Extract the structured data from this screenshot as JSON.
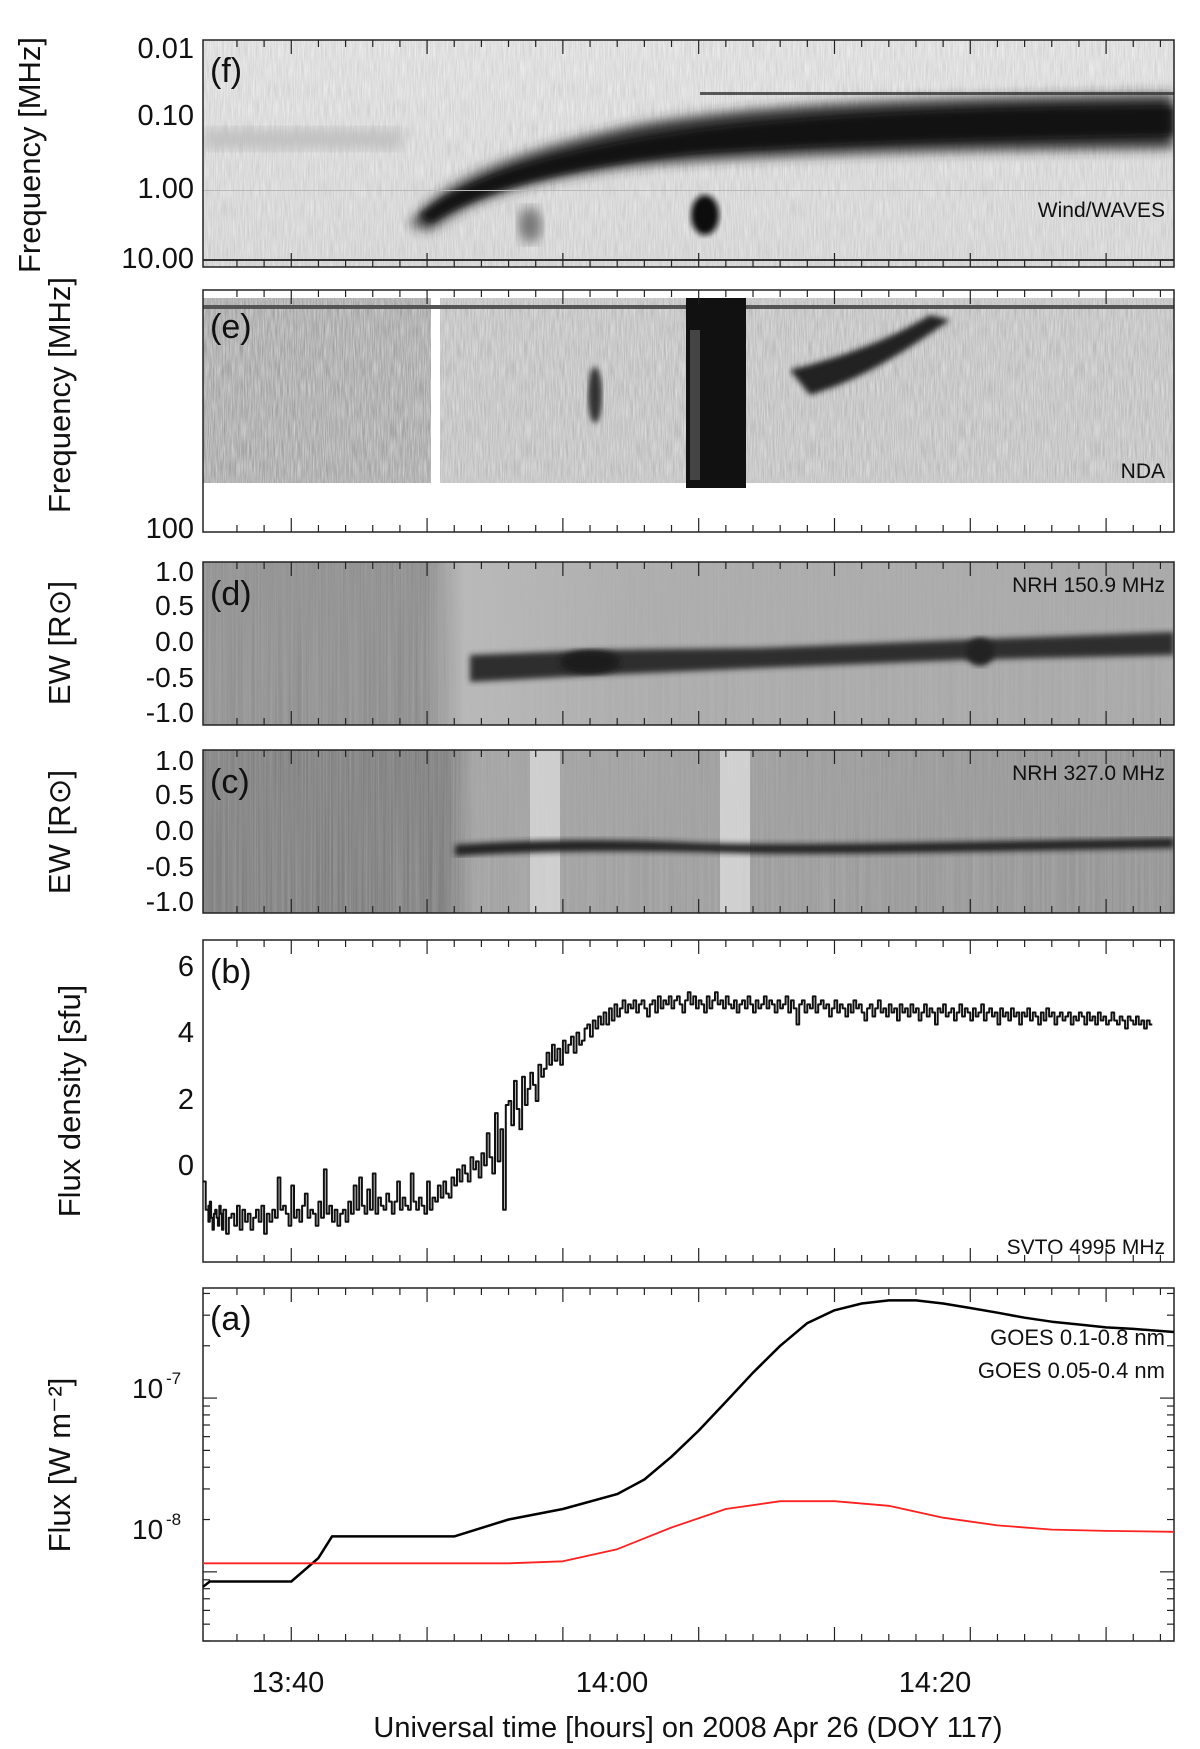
{
  "figure": {
    "xlabel": "Universal time [hours] on 2008 Apr 26 (DOY 117)",
    "xticks": [
      "13:40",
      "14:00",
      "14:20"
    ]
  },
  "chart_data": [
    {
      "panel": "(f)",
      "type": "heatmap",
      "instrument_label": "Wind/WAVES",
      "ylabel": "Frequency [MHz]",
      "yscale": "log",
      "yaxis_inverted": true,
      "yticks": [
        "0.01",
        "0.10",
        "1.00",
        "10.00"
      ],
      "features": [
        {
          "kind": "drifting type III burst lane",
          "x": [
            "13:51",
            "14:40"
          ],
          "y_freq_mhz": [
            3.0,
            0.08
          ]
        },
        {
          "kind": "burst",
          "x": [
            "14:06",
            "14:07"
          ],
          "y_freq_mhz": [
            1.2,
            2.8
          ]
        }
      ]
    },
    {
      "panel": "(e)",
      "type": "heatmap",
      "instrument_label": "NDA",
      "ylabel": "Frequency [MHz]",
      "yscale": "log",
      "yticks": [
        "100"
      ],
      "features": [
        {
          "kind": "data gap",
          "x": [
            "13:49.5",
            "13:50"
          ]
        },
        {
          "kind": "intense broadband emission",
          "x": [
            "14:03",
            "14:08"
          ]
        },
        {
          "kind": "drifting band",
          "x": [
            "14:08",
            "14:18"
          ]
        }
      ]
    },
    {
      "panel": "(d)",
      "type": "heatmap",
      "instrument_label": "NRH 150.9 MHz",
      "ylabel": "EW [R⊙]",
      "ylim": [
        -1.0,
        1.0
      ],
      "yticks": [
        "1.0",
        "0.5",
        "0.0",
        "-0.5",
        "-1.0"
      ],
      "features": [
        {
          "kind": "dark source track",
          "x": [
            "13:52",
            "14:40"
          ],
          "y": [
            -0.45,
            -0.05
          ]
        }
      ]
    },
    {
      "panel": "(c)",
      "type": "heatmap",
      "instrument_label": "NRH 327.0 MHz",
      "ylabel": "EW [R⊙]",
      "ylim": [
        -1.0,
        1.0
      ],
      "yticks": [
        "1.0",
        "0.5",
        "0.0",
        "-0.5",
        "-1.0"
      ],
      "features": [
        {
          "kind": "dark source track",
          "x": [
            "13:51",
            "14:40"
          ],
          "y": [
            -0.25,
            -0.15
          ]
        }
      ]
    },
    {
      "panel": "(b)",
      "type": "line",
      "instrument_label": "SVTO 4995 MHz",
      "ylabel": "Flux density [sfu]",
      "ylim": [
        -1.0,
        7.0
      ],
      "yticks": [
        "0",
        "2",
        "4",
        "6"
      ],
      "series": [
        {
          "x_minutes_utc": [
            13.5,
            13.7,
            13.9,
            13.9,
            14.0,
            14.1,
            14.2,
            14.3,
            14.4,
            14.5,
            14.6,
            14.7,
            14.8,
            14.9,
            15.0,
            15.2,
            15.4,
            15.6,
            15.8,
            16.0,
            16.2,
            16.4,
            16.6,
            16.8,
            17.0,
            17.2,
            17.4,
            17.6,
            17.8,
            18.0,
            18.2,
            18.4,
            18.6,
            18.8,
            19.0,
            19.2,
            19.4,
            19.6,
            19.8,
            20.0,
            20.2,
            20.4,
            20.6,
            20.8,
            21.0,
            21.2,
            21.4,
            21.6,
            21.8,
            22.0,
            22.2,
            22.4,
            22.6,
            22.8,
            23.0,
            23.2,
            23.4,
            23.6,
            23.8,
            24.0,
            24.2,
            24.4,
            24.6,
            24.8,
            25.0,
            25.2,
            25.4,
            25.6,
            25.8,
            26.0,
            26.2,
            26.4,
            26.6,
            26.8,
            27.0,
            27.2,
            27.4,
            27.6,
            27.8,
            28.0,
            28.2,
            28.4,
            28.6,
            28.8,
            29.0,
            29.2,
            29.4,
            29.6,
            29.8,
            30.0,
            30.2,
            30.4,
            30.6,
            30.8,
            31.0,
            31.2,
            31.4,
            31.6,
            31.8,
            32.0,
            32.2,
            32.4,
            32.6,
            32.8,
            33.0,
            33.2,
            33.4,
            33.6,
            33.8,
            34.0,
            34.2,
            34.4,
            34.6,
            34.8,
            35.0,
            35.2,
            35.4,
            35.6,
            35.8,
            36.0,
            36.2,
            36.4,
            36.6,
            36.8,
            37.0,
            37.2,
            37.4,
            37.6,
            37.8,
            38.0,
            38.2,
            38.4,
            38.6,
            38.8,
            39.0,
            39.2,
            39.4,
            39.6,
            39.8,
            40.0,
            40.2,
            40.4,
            40.6,
            40.8,
            41.0,
            41.2,
            41.4,
            41.6,
            41.8,
            42.0,
            42.2,
            42.4,
            42.6,
            42.8,
            43.0,
            43.2,
            43.4,
            43.6,
            43.8,
            44.0,
            44.2,
            44.4,
            44.6,
            44.8,
            45.0,
            45.2,
            45.4,
            45.6,
            45.8,
            46.0,
            46.2,
            46.4,
            46.6,
            46.8,
            47.0,
            47.2,
            47.4,
            47.6,
            47.8,
            48.0,
            48.2,
            48.4,
            48.6,
            48.8,
            49.0,
            49.2,
            49.4,
            49.6,
            49.8,
            50.0,
            50.2,
            50.4,
            50.6,
            50.8,
            51.0,
            51.2,
            51.4,
            51.6,
            51.8,
            52.0,
            52.2,
            52.4,
            52.6,
            52.8,
            53.0,
            53.2,
            53.4,
            53.6,
            53.8,
            54.0,
            54.2,
            54.4,
            54.6,
            54.8,
            55.0,
            55.2,
            55.4,
            55.6,
            55.8,
            56.0,
            56.2,
            56.4,
            56.6,
            56.8,
            57.0,
            57.2,
            57.4,
            57.6,
            57.8,
            58.0,
            58.2,
            58.4,
            58.6,
            58.8,
            59.0,
            59.2,
            59.4,
            59.6,
            59.8,
            60.0,
            60.2,
            60.4,
            60.6,
            60.8,
            61.0,
            61.2,
            61.4,
            61.6,
            61.8,
            62.0,
            62.2,
            62.4,
            62.6,
            62.8,
            63.0,
            63.2,
            63.4,
            63.6,
            63.8,
            64.0,
            64.2,
            64.4,
            64.6,
            64.8,
            65.0,
            65.2,
            65.4,
            65.6,
            65.8,
            66.0,
            66.2,
            66.4,
            66.6,
            66.8,
            67.0,
            67.2,
            67.4,
            67.6,
            67.8,
            68.0,
            68.2,
            68.4,
            68.6,
            68.8,
            69.0,
            69.2,
            69.4,
            69.6,
            69.8,
            70.0,
            70.2,
            70.4,
            70.6,
            70.8,
            71.0,
            71.2,
            71.4,
            71.6,
            71.8,
            72.0,
            72.2,
            72.4,
            72.6,
            72.8,
            73.0,
            73.2,
            73.4,
            73.6,
            73.8,
            74.0,
            74.2,
            74.4,
            74.6,
            74.8,
            75.0,
            75.2,
            75.4,
            75.6,
            75.8,
            76.0,
            76.2,
            76.4,
            76.6,
            76.8,
            77.0,
            77.2,
            77.4,
            77.6,
            77.8,
            78.0,
            78.2,
            78.4,
            78.6,
            78.8,
            79.0,
            79.2,
            79.4,
            79.6,
            79.8,
            80.0,
            80.2,
            80.4,
            80.6,
            80.8,
            81.0,
            81.2,
            81.4,
            81.6,
            81.8,
            82.0,
            82.2,
            82.4,
            82.6,
            82.8,
            83.0,
            83.2,
            83.4,
            83.6,
            83.8,
            84.0,
            84.2,
            84.4,
            84.6,
            84.8,
            85.0
          ],
          "y": [
            1.0,
            0.3,
            0.4,
            0.0,
            0.5,
            0.1,
            -0.2,
            0.2,
            0.3,
            0.1,
            -0.1,
            0.4,
            0.2,
            -0.2,
            0.3,
            -0.3,
            0.1,
            0.2,
            -0.1,
            0.4,
            -0.2,
            0.3,
            0.0,
            0.2,
            -0.2,
            0.1,
            0.3,
            0.0,
            0.4,
            -0.3,
            0.2,
            0.0,
            0.3,
            0.1,
            1.1,
            0.3,
            0.4,
            0.2,
            -0.1,
            0.9,
            0.1,
            0.3,
            0.0,
            0.4,
            0.7,
            0.1,
            0.3,
            0.2,
            -0.1,
            0.5,
            0.1,
            1.3,
            0.2,
            0.4,
            0.0,
            0.3,
            -0.1,
            0.2,
            0.3,
            0.0,
            0.5,
            0.2,
            0.9,
            0.3,
            1.1,
            0.4,
            0.2,
            0.8,
            0.3,
            1.2,
            0.2,
            0.6,
            0.4,
            0.3,
            0.7,
            0.5,
            0.2,
            0.5,
            1.0,
            0.3,
            0.6,
            0.4,
            0.3,
            1.2,
            0.5,
            0.3,
            0.6,
            0.4,
            0.2,
            1.0,
            0.3,
            0.6,
            0.5,
            0.9,
            0.6,
            1.0,
            0.7,
            0.6,
            1.1,
            0.9,
            1.3,
            1.0,
            1.4,
            1.2,
            1.0,
            1.6,
            1.3,
            1.5,
            1.1,
            1.7,
            1.4,
            2.2,
            1.6,
            1.2,
            2.7,
            1.5,
            2.3,
            0.3,
            2.9,
            3.0,
            2.4,
            3.5,
            2.8,
            2.3,
            3.6,
            2.9,
            3.3,
            3.7,
            3.4,
            3.0,
            3.9,
            3.6,
            3.8,
            4.2,
            3.9,
            4.4,
            4.0,
            4.3,
            3.9,
            4.5,
            4.2,
            4.4,
            4.6,
            4.2,
            4.7,
            4.4,
            4.5,
            4.8,
            4.9,
            4.6,
            5.0,
            4.8,
            5.1,
            4.9,
            5.2,
            4.9,
            5.3,
            5.0,
            5.4,
            5.1,
            5.3,
            5.5,
            5.2,
            5.4,
            5.3,
            5.5,
            5.2,
            5.4,
            5.5,
            5.3,
            5.1,
            5.4,
            5.5,
            5.2,
            5.6,
            5.3,
            5.5,
            5.4,
            5.6,
            5.3,
            5.5,
            5.6,
            5.4,
            5.2,
            5.5,
            5.7,
            5.4,
            5.6,
            5.3,
            5.5,
            5.4,
            5.2,
            5.6,
            5.3,
            5.5,
            5.7,
            5.4,
            5.5,
            5.3,
            5.6,
            5.4,
            5.3,
            5.5,
            5.2,
            5.4,
            5.5,
            5.3,
            5.6,
            5.4,
            5.2,
            5.5,
            5.3,
            5.4,
            5.6,
            5.3,
            5.5,
            5.4,
            5.2,
            5.5,
            5.3,
            5.4,
            5.6,
            5.2,
            5.5,
            5.3,
            4.9,
            5.4,
            5.5,
            5.2,
            5.4,
            5.3,
            5.6,
            5.2,
            5.4,
            5.5,
            5.3,
            5.4,
            5.1,
            5.3,
            5.5,
            5.2,
            5.4,
            5.3,
            5.1,
            5.4,
            5.2,
            5.5,
            5.3,
            5.4,
            5.2,
            5.0,
            5.3,
            5.4,
            5.1,
            5.3,
            5.5,
            5.2,
            5.3,
            5.1,
            5.4,
            5.2,
            5.3,
            5.0,
            5.4,
            5.2,
            5.3,
            5.1,
            5.4,
            5.2,
            5.3,
            5.0,
            5.2,
            5.4,
            5.1,
            5.3,
            5.2,
            4.9,
            5.3,
            5.2,
            5.4,
            5.1,
            5.2,
            5.3,
            5.0,
            5.2,
            5.4,
            5.1,
            5.3,
            5.2,
            5.0,
            5.3,
            5.1,
            5.2,
            5.4,
            5.0,
            5.2,
            5.3,
            5.1,
            5.2,
            4.9,
            5.3,
            5.1,
            5.2,
            5.0,
            5.3,
            5.1,
            5.2,
            4.9,
            5.2,
            5.1,
            5.3,
            5.0,
            5.2,
            5.1,
            4.9,
            5.2,
            5.0,
            5.3,
            5.1,
            5.2,
            4.9,
            5.1,
            5.2,
            5.0,
            5.1,
            5.2,
            4.9,
            5.1,
            5.0,
            5.2,
            5.1,
            4.9,
            5.2,
            5.0,
            5.1,
            4.9,
            5.2,
            5.0,
            5.1,
            4.9,
            5.0,
            5.2,
            5.0,
            4.9,
            5.1,
            5.0,
            4.8,
            5.1,
            5.0,
            4.9,
            5.1,
            4.9,
            5.0,
            4.8,
            5.0,
            4.9
          ]
        }
      ]
    },
    {
      "panel": "(a)",
      "type": "line",
      "ylabel": "Flux [W m⁻²]",
      "yscale": "log",
      "ylim": [
        4e-09,
        4.3e-07
      ],
      "ytick_values": [
        1e-08,
        1e-07
      ],
      "yticks": [
        "10",
        "10"
      ],
      "ytick_exponents": [
        "-8",
        "-7"
      ],
      "series": [
        {
          "name": "GOES 0.1-0.8 nm",
          "color": "#000000",
          "x_minutes_utc": [
            13.5,
            14.0,
            20.0,
            22.0,
            23.0,
            24.0,
            26.0,
            32.0,
            36.0,
            40.0,
            44.0,
            46.0,
            48.0,
            50.0,
            52.0,
            54.0,
            56.0,
            58.0,
            60.0,
            62.0,
            64.0,
            66.0,
            68.0,
            70.0,
            72.0,
            74.0,
            76.0,
            78.0,
            80.0,
            82.0,
            85.0
          ],
          "y": [
            8.2e-09,
            8.8e-09,
            8.8e-09,
            1.2e-08,
            1.6e-08,
            1.6e-08,
            1.6e-08,
            1.6e-08,
            2e-08,
            2.3e-08,
            2.8e-08,
            3.4e-08,
            4.6e-08,
            6.5e-08,
            9.5e-08,
            1.4e-07,
            2e-07,
            2.7e-07,
            3.2e-07,
            3.5e-07,
            3.65e-07,
            3.65e-07,
            3.5e-07,
            3.3e-07,
            3.1e-07,
            2.9e-07,
            2.75e-07,
            2.65e-07,
            2.55e-07,
            2.5e-07,
            2.4e-07
          ]
        },
        {
          "name": "GOES 0.05-0.4 nm",
          "color": "#ff2020",
          "x_minutes_utc": [
            13.5,
            30.0,
            36.0,
            40.0,
            44.0,
            48.0,
            52.0,
            56.0,
            60.0,
            64.0,
            68.0,
            72.0,
            76.0,
            80.0,
            85.0
          ],
          "y": [
            1.12e-08,
            1.12e-08,
            1.12e-08,
            1.15e-08,
            1.35e-08,
            1.8e-08,
            2.3e-08,
            2.55e-08,
            2.55e-08,
            2.4e-08,
            2.05e-08,
            1.85e-08,
            1.75e-08,
            1.72e-08,
            1.7e-08
          ]
        }
      ]
    }
  ]
}
